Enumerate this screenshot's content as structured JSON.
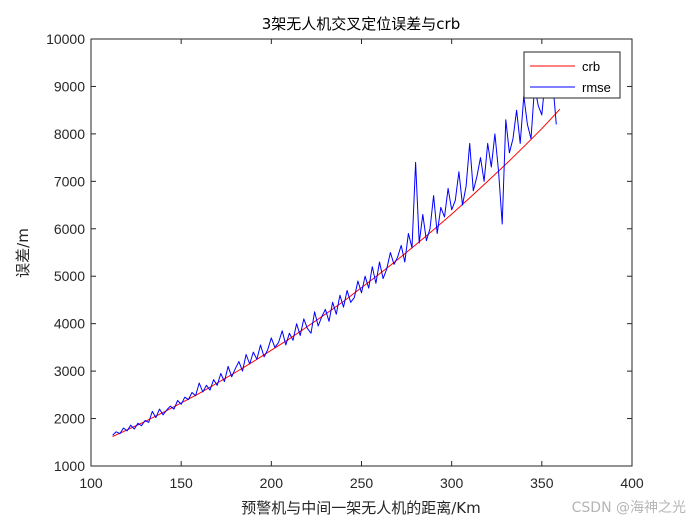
{
  "chart_data": {
    "type": "line",
    "title": "3架无人机交叉定位误差与crb",
    "xlabel": "预警机与中间一架无人机的距离/Km",
    "ylabel": "误差/m",
    "xlim": [
      100,
      400
    ],
    "ylim": [
      1000,
      10000
    ],
    "xticks": [
      100,
      150,
      200,
      250,
      300,
      350,
      400
    ],
    "yticks": [
      1000,
      2000,
      3000,
      4000,
      5000,
      6000,
      7000,
      8000,
      9000,
      10000
    ],
    "legend_location": "top-right",
    "series": [
      {
        "name": "crb",
        "color": "#ff0000",
        "x": [
          112,
          120,
          130,
          140,
          150,
          160,
          170,
          180,
          190,
          200,
          210,
          220,
          230,
          240,
          250,
          260,
          270,
          280,
          290,
          300,
          310,
          320,
          330,
          340,
          350,
          360
        ],
        "y": [
          1620,
          1760,
          1940,
          2130,
          2330,
          2530,
          2750,
          2970,
          3200,
          3440,
          3680,
          3940,
          4200,
          4470,
          4760,
          5050,
          5350,
          5660,
          5980,
          6310,
          6650,
          7000,
          7360,
          7730,
          8110,
          8520
        ]
      },
      {
        "name": "rmse",
        "color": "#0000ff",
        "x": [
          112,
          114,
          116,
          118,
          120,
          122,
          124,
          126,
          128,
          130,
          132,
          134,
          136,
          138,
          140,
          142,
          144,
          146,
          148,
          150,
          152,
          154,
          156,
          158,
          160,
          162,
          164,
          166,
          168,
          170,
          172,
          174,
          176,
          178,
          180,
          182,
          184,
          186,
          188,
          190,
          192,
          194,
          196,
          198,
          200,
          202,
          204,
          206,
          208,
          210,
          212,
          214,
          216,
          218,
          220,
          222,
          224,
          226,
          228,
          230,
          232,
          234,
          236,
          238,
          240,
          242,
          244,
          246,
          248,
          250,
          252,
          254,
          256,
          258,
          260,
          262,
          264,
          266,
          268,
          270,
          272,
          274,
          276,
          278,
          280,
          282,
          284,
          286,
          288,
          290,
          292,
          294,
          296,
          298,
          300,
          302,
          304,
          306,
          308,
          310,
          312,
          314,
          316,
          318,
          320,
          322,
          324,
          326,
          328,
          330,
          332,
          334,
          336,
          338,
          340,
          342,
          344,
          346,
          348,
          350,
          352,
          354,
          356,
          358
        ],
        "y": [
          1650,
          1720,
          1680,
          1800,
          1740,
          1860,
          1780,
          1900,
          1850,
          1960,
          1920,
          2150,
          2020,
          2200,
          2080,
          2180,
          2260,
          2200,
          2380,
          2300,
          2450,
          2400,
          2550,
          2480,
          2750,
          2560,
          2700,
          2600,
          2820,
          2700,
          2950,
          2780,
          3100,
          2880,
          3050,
          3200,
          3000,
          3350,
          3150,
          3400,
          3250,
          3550,
          3300,
          3450,
          3700,
          3500,
          3600,
          3850,
          3550,
          3800,
          3650,
          4000,
          3750,
          4100,
          3900,
          3800,
          4250,
          3950,
          4150,
          4300,
          4050,
          4450,
          4200,
          4600,
          4350,
          4700,
          4450,
          4550,
          4900,
          4650,
          5000,
          4750,
          5200,
          4850,
          5300,
          4950,
          5150,
          5500,
          5250,
          5400,
          5650,
          5300,
          5900,
          5600,
          7400,
          5700,
          6300,
          5750,
          6000,
          6700,
          5900,
          6450,
          6250,
          6850,
          6400,
          6600,
          7200,
          6500,
          6900,
          7800,
          6800,
          7100,
          7500,
          7000,
          7800,
          7300,
          8000,
          7200,
          6100,
          8300,
          7600,
          7900,
          8500,
          7800,
          8800,
          8200,
          7900,
          9000,
          8600,
          8400,
          9200,
          8800,
          9100,
          8200
        ]
      }
    ]
  },
  "watermark": "CSDN @海神之光"
}
